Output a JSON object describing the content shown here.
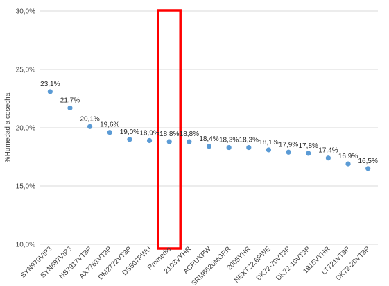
{
  "chart_data": {
    "type": "scatter",
    "ylabel": "%Humedad a cosecha",
    "ylim": [
      10,
      30
    ],
    "yticks": [
      10,
      15,
      20,
      25,
      30
    ],
    "ytick_labels": [
      "10,0%",
      "15,0%",
      "20,0%",
      "25,0%",
      "30,0%"
    ],
    "grid": "horizontal",
    "categories": [
      "SYN979VIP3",
      "SYN897VIP3",
      "NS7917VT3P",
      "AX7761VT3P",
      "DM2772VT3P",
      "DS507PWU",
      "Promedio",
      "2103VYHR",
      "ACRUXPW",
      "SRM6620MGRR",
      "2005YHR",
      "NEXT22.6PWE",
      "DK72-70VT3P",
      "DK72-10VT3P",
      "1815VYHR",
      "LT721VT3P",
      "DK72-20VT3P"
    ],
    "values": [
      23.1,
      21.7,
      20.1,
      19.6,
      19.0,
      18.9,
      18.8,
      18.8,
      18.4,
      18.3,
      18.3,
      18.1,
      17.9,
      17.8,
      17.4,
      16.9,
      16.5
    ],
    "data_labels": [
      "23,1%",
      "21,7%",
      "20,1%",
      "19,6%",
      "19,0%",
      "18,9%",
      "18,8%",
      "18,8%",
      "18,4%",
      "18,3%",
      "18,3%",
      "18,1%",
      "17,9%",
      "17,8%",
      "17,4%",
      "16,9%",
      "16,5%"
    ],
    "highlight_category": "Promedio",
    "colors": {
      "marker": "#5b9bd5",
      "highlight": "#ff0000",
      "grid": "#d9d9d9"
    }
  }
}
